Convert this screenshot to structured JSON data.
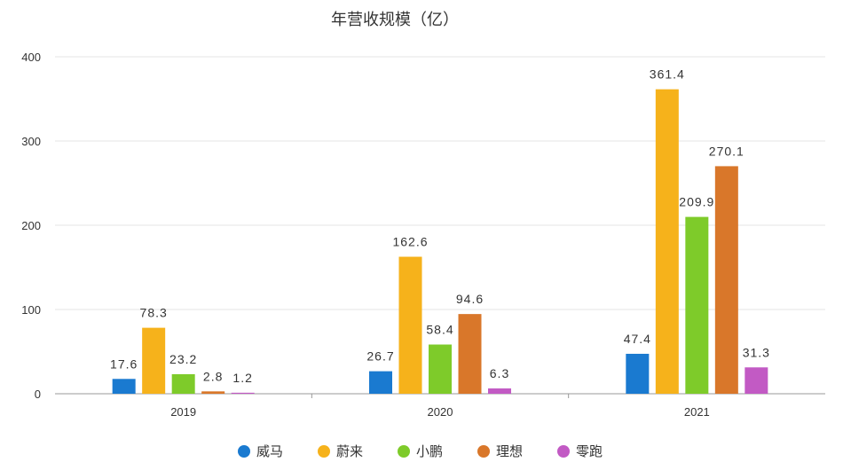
{
  "chart_data": {
    "type": "bar",
    "title": "年营收规模（亿）",
    "categories": [
      "2019",
      "2020",
      "2021"
    ],
    "ylim": [
      0,
      400
    ],
    "yticks": [
      0,
      100,
      200,
      300,
      400
    ],
    "grid": true,
    "legend_position": "bottom",
    "series": [
      {
        "name": "威马",
        "color": "#1a7ad0",
        "values": [
          17.6,
          26.7,
          47.4
        ],
        "labels": [
          "17.6",
          "26.7",
          "47.4"
        ]
      },
      {
        "name": "蔚来",
        "color": "#f6b21b",
        "values": [
          78.3,
          162.6,
          361.4
        ],
        "labels": [
          "78.3",
          "162.6",
          "361.4"
        ]
      },
      {
        "name": "小鹏",
        "color": "#7ecb2a",
        "values": [
          23.2,
          58.4,
          209.9
        ],
        "labels": [
          "23.2",
          "58.4",
          "209.9"
        ]
      },
      {
        "name": "理想",
        "color": "#d9772a",
        "values": [
          2.8,
          94.6,
          270.1
        ],
        "labels": [
          "2.8",
          "94.6",
          "270.1"
        ]
      },
      {
        "name": "零跑",
        "color": "#c25ac4",
        "values": [
          1.2,
          6.3,
          31.3
        ],
        "labels": [
          "1.2",
          "6.3",
          "31.3"
        ]
      }
    ]
  }
}
